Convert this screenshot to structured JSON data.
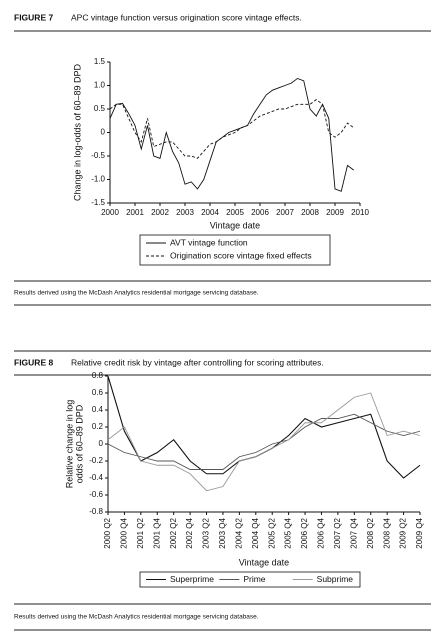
{
  "chart_data": [
    {
      "type": "line",
      "figure": "FIGURE 7",
      "title": "APC vintage function versus origination score vintage effects.",
      "ylabel": "Change in log-odds of 60–89 DPD",
      "xlabel": "Vintage date",
      "note": "Results derived using the McDash Analytics residential mortgage servicing database.",
      "xlim": [
        2000,
        2010
      ],
      "xticks": [
        2000,
        2001,
        2002,
        2003,
        2004,
        2005,
        2006,
        2007,
        2008,
        2009,
        2010
      ],
      "ylim": [
        -1.5,
        1.5
      ],
      "yticks": [
        1.5,
        {
          "value": 1,
          "label": "1.0"
        },
        0.5,
        0,
        -0.5,
        {
          "value": -1,
          "label": "-1.0"
        },
        -1.5
      ],
      "x": [
        2000,
        2000.25,
        2000.5,
        2000.75,
        2001,
        2001.25,
        2001.5,
        2001.75,
        2002,
        2002.25,
        2002.5,
        2002.75,
        2003,
        2003.25,
        2003.5,
        2003.75,
        2004,
        2004.25,
        2004.5,
        2004.75,
        2005,
        2005.25,
        2005.5,
        2005.75,
        2006,
        2006.25,
        2006.5,
        2006.75,
        2007,
        2007.25,
        2007.5,
        2007.75,
        2008,
        2008.25,
        2008.5,
        2008.75,
        2009,
        2009.25,
        2009.5,
        2009.75
      ],
      "series": [
        {
          "name": "AVT vintage function",
          "color": "#111111",
          "dashed": false,
          "values": [
            0.3,
            0.6,
            0.62,
            0.4,
            0.15,
            -0.35,
            0.15,
            -0.5,
            -0.55,
            0.0,
            -0.4,
            -0.65,
            -1.1,
            -1.05,
            -1.2,
            -1.0,
            -0.6,
            -0.2,
            -0.1,
            0.0,
            0.05,
            0.1,
            0.15,
            0.4,
            0.6,
            0.8,
            0.9,
            0.95,
            1.0,
            1.05,
            1.15,
            1.1,
            0.5,
            0.35,
            0.6,
            0.3,
            -1.2,
            -1.25,
            -0.7,
            -0.8
          ]
        },
        {
          "name": "Origination score vintage fixed effects",
          "color": "#111111",
          "dashed": true,
          "values": [
            0.5,
            0.6,
            0.6,
            0.3,
            0.0,
            -0.2,
            0.3,
            -0.3,
            -0.25,
            -0.2,
            -0.2,
            -0.35,
            -0.5,
            -0.5,
            -0.55,
            -0.4,
            -0.25,
            -0.2,
            -0.1,
            -0.05,
            0.0,
            0.1,
            0.15,
            0.25,
            0.35,
            0.4,
            0.45,
            0.5,
            0.5,
            0.55,
            0.6,
            0.6,
            0.6,
            0.7,
            0.6,
            0.0,
            -0.1,
            0.0,
            0.2,
            0.1
          ]
        }
      ]
    },
    {
      "type": "line",
      "figure": "FIGURE 8",
      "title": "Relative credit risk by vintage after controlling for scoring attributes.",
      "ylabel": [
        "Relative change in log",
        "odds of 60–89 DPD"
      ],
      "xlabel": "Vintage date",
      "note": "Results derived using the McDash Analytics residential mortgage servicing database.",
      "ylim": [
        -0.8,
        0.8
      ],
      "yticks": [
        0.8,
        0.6,
        0.4,
        0.2,
        0,
        -0.2,
        -0.4,
        -0.6,
        -0.8
      ],
      "categories": [
        "2000 Q2",
        "2000 Q4",
        "2001 Q2",
        "2001 Q4",
        "2002 Q2",
        "2002 Q4",
        "2003 Q2",
        "2003 Q4",
        "2004 Q2",
        "2004 Q4",
        "2005 Q2",
        "2005 Q4",
        "2006 Q2",
        "2006 Q4",
        "2007 Q2",
        "2007 Q4",
        "2008 Q2",
        "2008 Q4",
        "2009 Q2",
        "2009 Q4"
      ],
      "series": [
        {
          "name": "Superprime",
          "color": "#111111",
          "dashed": false,
          "values": [
            0.8,
            0.15,
            -0.2,
            -0.1,
            0.05,
            -0.2,
            -0.35,
            -0.35,
            -0.2,
            -0.15,
            -0.05,
            0.1,
            0.3,
            0.2,
            0.25,
            0.3,
            0.35,
            -0.2,
            -0.4,
            -0.25
          ]
        },
        {
          "name": "Prime",
          "color": "#555555",
          "dashed": false,
          "values": [
            0.0,
            -0.1,
            -0.15,
            -0.2,
            -0.2,
            -0.3,
            -0.3,
            -0.3,
            -0.15,
            -0.1,
            0.0,
            0.05,
            0.2,
            0.3,
            0.3,
            0.35,
            0.25,
            0.15,
            0.1,
            0.15
          ]
        },
        {
          "name": "Subprime",
          "color": "#999999",
          "dashed": false,
          "values": [
            0.05,
            0.2,
            -0.2,
            -0.25,
            -0.25,
            -0.35,
            -0.55,
            -0.5,
            -0.2,
            -0.15,
            -0.05,
            0.05,
            0.25,
            0.25,
            0.4,
            0.55,
            0.6,
            0.1,
            0.15,
            0.1
          ]
        }
      ]
    }
  ]
}
